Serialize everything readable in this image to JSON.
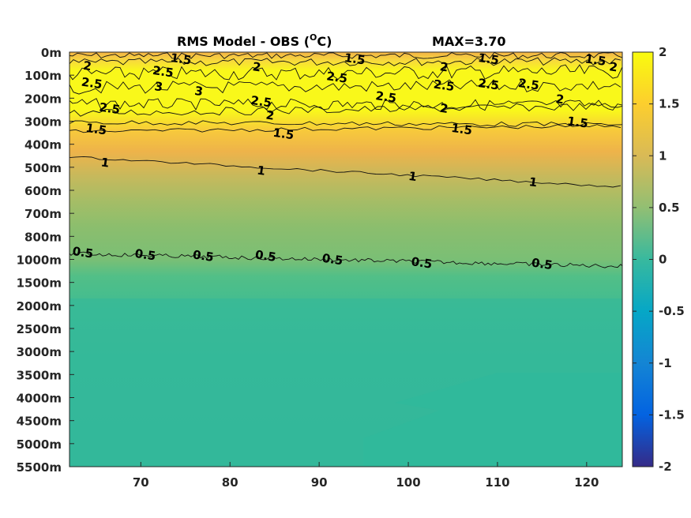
{
  "chart_data": {
    "type": "heatmap",
    "title_main": "RMS Model - OBS (",
    "title_sup": "O",
    "title_unit": "C)",
    "title_max": "MAX=3.70",
    "max_value": 3.7,
    "x_ticks": [
      "70",
      "80",
      "90",
      "100",
      "110",
      "120"
    ],
    "x_tick_values": [
      70,
      80,
      90,
      100,
      110,
      120
    ],
    "xlim": [
      62,
      124
    ],
    "y_ticks": [
      "0m",
      "100m",
      "200m",
      "300m",
      "400m",
      "500m",
      "600m",
      "700m",
      "800m",
      "1000m",
      "1500m",
      "2000m",
      "2500m",
      "3000m",
      "3500m",
      "4000m",
      "4500m",
      "5000m",
      "5500m"
    ],
    "colorbar": {
      "ticks": [
        "2",
        "1.5",
        "1",
        "0.5",
        "0",
        "-0.5",
        "-1",
        "-1.5",
        "-2"
      ],
      "tick_values": [
        2,
        1.5,
        1,
        0.5,
        0,
        -0.5,
        -1,
        -1.5,
        -2
      ],
      "clim": [
        -2,
        2
      ],
      "colormap": "parula",
      "colors": [
        "#352a87",
        "#0363e1",
        "#1485d4",
        "#06a7c6",
        "#38b99e",
        "#92bf73",
        "#d9ba56",
        "#fcce2e",
        "#f9fb0e"
      ]
    },
    "contour_levels": [
      0.5,
      1,
      1.5,
      2,
      2.5,
      3
    ],
    "contour_labels": [
      {
        "text": "2",
        "x": 64.0,
        "y_level": 0.6
      },
      {
        "text": "1.5",
        "x": 74.5,
        "y_level": 0.3
      },
      {
        "text": "2.5",
        "x": 64.5,
        "y_level": 1.35
      },
      {
        "text": "2.5",
        "x": 72.5,
        "y_level": 0.85
      },
      {
        "text": "3",
        "x": 72.0,
        "y_level": 1.5
      },
      {
        "text": "3",
        "x": 76.5,
        "y_level": 1.7
      },
      {
        "text": "2.5",
        "x": 66.5,
        "y_level": 2.45
      },
      {
        "text": "1.5",
        "x": 65.0,
        "y_level": 3.35
      },
      {
        "text": "1",
        "x": 66.0,
        "y_level": 4.8
      },
      {
        "text": "2",
        "x": 83.0,
        "y_level": 0.65
      },
      {
        "text": "1.5",
        "x": 94.0,
        "y_level": 0.3
      },
      {
        "text": "2.5",
        "x": 83.5,
        "y_level": 2.15
      },
      {
        "text": "2",
        "x": 84.5,
        "y_level": 2.75
      },
      {
        "text": "1.5",
        "x": 86.0,
        "y_level": 3.55
      },
      {
        "text": "1",
        "x": 83.5,
        "y_level": 5.15
      },
      {
        "text": "2.5",
        "x": 92.0,
        "y_level": 1.1
      },
      {
        "text": "2.5",
        "x": 97.5,
        "y_level": 1.95
      },
      {
        "text": "2",
        "x": 104.0,
        "y_level": 0.65
      },
      {
        "text": "2.5",
        "x": 104.0,
        "y_level": 1.45
      },
      {
        "text": "2",
        "x": 104.0,
        "y_level": 2.45
      },
      {
        "text": "1.5",
        "x": 106.0,
        "y_level": 3.35
      },
      {
        "text": "1",
        "x": 100.5,
        "y_level": 5.4
      },
      {
        "text": "1.5",
        "x": 109.0,
        "y_level": 0.3
      },
      {
        "text": "2.5",
        "x": 109.0,
        "y_level": 1.4
      },
      {
        "text": "2.5",
        "x": 113.5,
        "y_level": 1.4
      },
      {
        "text": "2",
        "x": 117.0,
        "y_level": 2.05
      },
      {
        "text": "1.5",
        "x": 119.0,
        "y_level": 3.05
      },
      {
        "text": "1",
        "x": 114.0,
        "y_level": 5.65
      },
      {
        "text": "1.5",
        "x": 121.0,
        "y_level": 0.35
      },
      {
        "text": "2",
        "x": 123.0,
        "y_level": 0.65
      },
      {
        "text": "0.5",
        "x": 63.5,
        "y_level": 8.7
      },
      {
        "text": "0.5",
        "x": 70.5,
        "y_level": 8.8
      },
      {
        "text": "0.5",
        "x": 77.0,
        "y_level": 8.85
      },
      {
        "text": "0.5",
        "x": 84.0,
        "y_level": 8.85
      },
      {
        "text": "0.5",
        "x": 91.5,
        "y_level": 9.0
      },
      {
        "text": "0.5",
        "x": 101.5,
        "y_level": 9.15
      },
      {
        "text": "0.5",
        "x": 115.0,
        "y_level": 9.2
      }
    ]
  }
}
